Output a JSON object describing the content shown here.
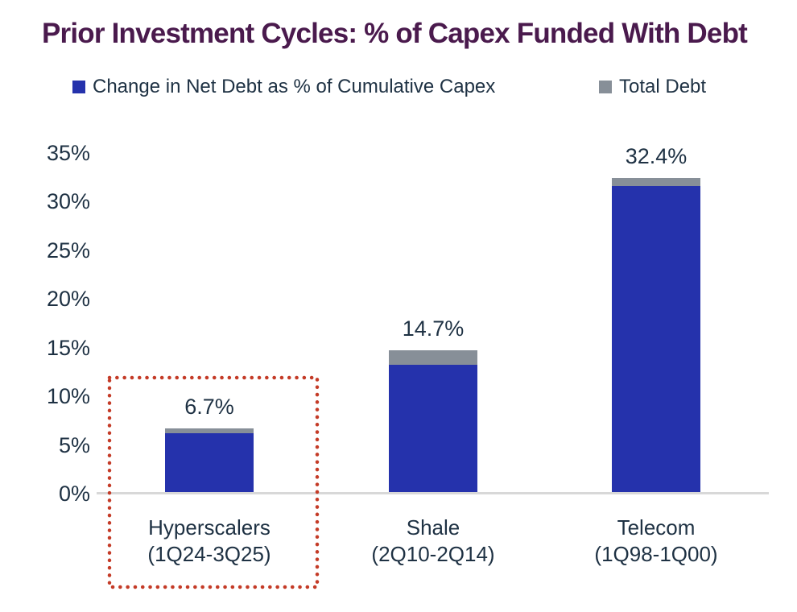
{
  "title": "Prior Investment Cycles: % of Capex Funded With Debt",
  "colors": {
    "title_purple": "#4a1a4d",
    "text_navy": "#1e3143",
    "net_debt_blue": "#2532ac",
    "total_debt_gray": "#878f98",
    "highlight_red": "#c43b27",
    "axis_line_gray": "#d8d8d8",
    "background": "#ffffff"
  },
  "legend": [
    {
      "label": "Change in Net Debt as % of Cumulative Capex",
      "color": "#2532ac"
    },
    {
      "label": "Total Debt",
      "color": "#878f98"
    }
  ],
  "chart_data": {
    "type": "bar",
    "stacked": true,
    "title": "Prior Investment Cycles: % of Capex Funded With Debt",
    "categories": [
      {
        "name": "Hyperscalers",
        "period": "(1Q24-3Q25)",
        "slug": "hyperscalers"
      },
      {
        "name": "Shale",
        "period": "(2Q10-2Q14)",
        "slug": "shale"
      },
      {
        "name": "Telecom",
        "period": "(1Q98-1Q00)",
        "slug": "telecom"
      }
    ],
    "series": [
      {
        "name": "Change in Net Debt as % of Cumulative Capex",
        "color": "#2532ac",
        "values": [
          6.2,
          13.2,
          31.6
        ]
      },
      {
        "name": "Total Debt",
        "color": "#878f98",
        "values": [
          0.5,
          1.5,
          0.8
        ]
      }
    ],
    "totals": [
      6.7,
      14.7,
      32.4
    ],
    "bar_labels": [
      "6.7%",
      "14.7%",
      "32.4%"
    ],
    "xlabel": "",
    "ylabel": "",
    "ylim": [
      0,
      35
    ],
    "yticks": [
      0,
      5,
      10,
      15,
      20,
      25,
      30,
      35
    ],
    "ytick_labels": [
      "0%",
      "5%",
      "10%",
      "15%",
      "20%",
      "25%",
      "30%",
      "35%"
    ],
    "grid": false,
    "legend_position": "top",
    "highlighted_category": "Hyperscalers (1Q24-3Q25)"
  }
}
